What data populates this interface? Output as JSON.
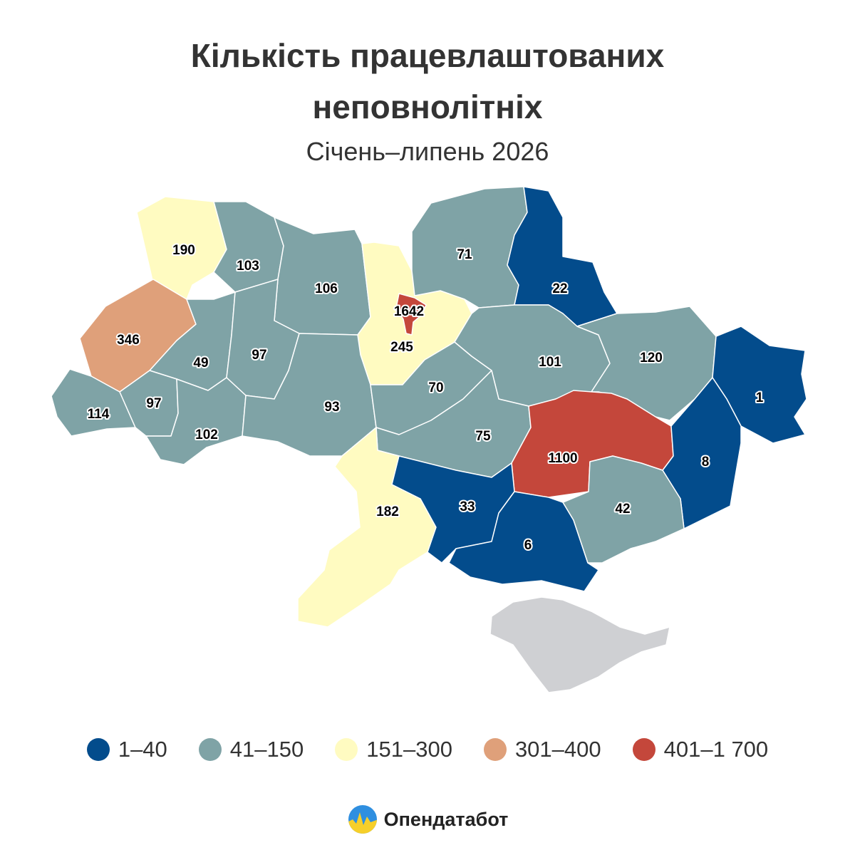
{
  "title_line1": "Кількість працевлаштованих",
  "title_line2": "неповнолітніх",
  "subtitle": "Січень–липень 2026",
  "colors": {
    "c1": "#034c8c",
    "c2": "#7fa3a6",
    "c3": "#fffbc1",
    "c4": "#dfa07a",
    "c5": "#c4473b",
    "na": "#cfd0d3"
  },
  "regions": [
    {
      "id": "volyn",
      "value": "190",
      "cls": "c3"
    },
    {
      "id": "rivne",
      "value": "103",
      "cls": "c2"
    },
    {
      "id": "zhytomyr",
      "value": "106",
      "cls": "c2"
    },
    {
      "id": "kyiv-oblast",
      "value": "245",
      "cls": "c3"
    },
    {
      "id": "kyiv-city",
      "value": "1642",
      "cls": "c5"
    },
    {
      "id": "chernihiv",
      "value": "71",
      "cls": "c2"
    },
    {
      "id": "sumy",
      "value": "22",
      "cls": "c1"
    },
    {
      "id": "lviv",
      "value": "346",
      "cls": "c4"
    },
    {
      "id": "ternopil",
      "value": "49",
      "cls": "c2"
    },
    {
      "id": "khmelnytskyi",
      "value": "97",
      "cls": "c2"
    },
    {
      "id": "zakarpattia",
      "value": "114",
      "cls": "c2"
    },
    {
      "id": "ivano-frankivsk",
      "value": "97",
      "cls": "c2"
    },
    {
      "id": "chernivtsi",
      "value": "102",
      "cls": "c2"
    },
    {
      "id": "vinnytsia",
      "value": "93",
      "cls": "c2"
    },
    {
      "id": "cherkasy",
      "value": "70",
      "cls": "c2"
    },
    {
      "id": "poltava",
      "value": "101",
      "cls": "c2"
    },
    {
      "id": "kharkiv",
      "value": "120",
      "cls": "c2"
    },
    {
      "id": "luhansk",
      "value": "1",
      "cls": "c1"
    },
    {
      "id": "kirovohrad",
      "value": "75",
      "cls": "c2"
    },
    {
      "id": "dnipro",
      "value": "1100",
      "cls": "c5"
    },
    {
      "id": "donetsk",
      "value": "8",
      "cls": "c1"
    },
    {
      "id": "odesa",
      "value": "182",
      "cls": "c3"
    },
    {
      "id": "mykolaiv",
      "value": "33",
      "cls": "c1"
    },
    {
      "id": "kherson",
      "value": "6",
      "cls": "c1"
    },
    {
      "id": "zaporizhzhia",
      "value": "42",
      "cls": "c2"
    },
    {
      "id": "crimea",
      "value": "",
      "cls": "na"
    }
  ],
  "legend": [
    {
      "label": "1–40",
      "color": "#034c8c"
    },
    {
      "label": "41–150",
      "color": "#7fa3a6"
    },
    {
      "label": "151–300",
      "color": "#fffbc1"
    },
    {
      "label": "301–400",
      "color": "#dfa07a"
    },
    {
      "label": "401–1 700",
      "color": "#c4473b"
    }
  ],
  "brand": "Опендатабот"
}
